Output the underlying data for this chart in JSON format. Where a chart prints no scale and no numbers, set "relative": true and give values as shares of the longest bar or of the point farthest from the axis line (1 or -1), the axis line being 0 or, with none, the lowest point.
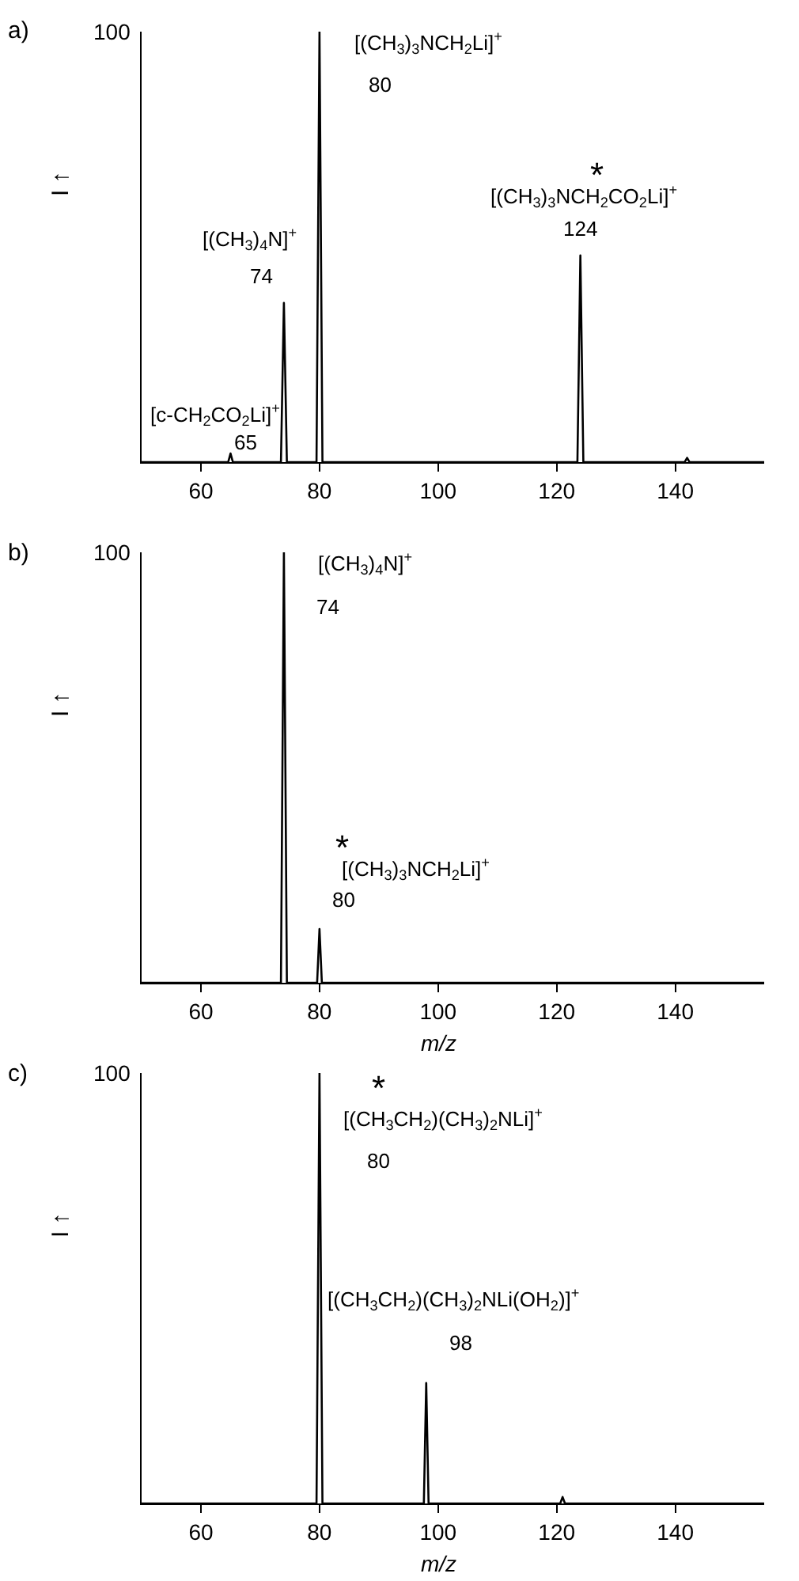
{
  "chart_data": [
    {
      "type": "line",
      "title": "a)",
      "ylabel": "I ↑",
      "relative": true,
      "xlim": [
        50,
        155
      ],
      "xticks": [
        60,
        80,
        100,
        120,
        140
      ],
      "marker": "none",
      "line_style": "solid",
      "series": [
        {
          "color": "#000000",
          "x": [
            50,
            64.6,
            65,
            65.4,
            73.5,
            74,
            74.5,
            79.5,
            80,
            80.5,
            123.5,
            124,
            124.5,
            141.6,
            142,
            142.4,
            155
          ],
          "values": [
            0,
            0,
            0.02,
            0,
            0,
            0.37,
            0,
            0,
            1,
            0,
            0,
            0.48,
            0,
            0,
            0.01,
            0,
            0
          ]
        }
      ],
      "annotations": [
        "100",
        "[c-CH$_{2}$CO$_{2}$Li]$^{+}$",
        {
          "text": "65",
          "x": 65,
          "y": 0.02
        },
        "[(CH$_{3}$)$_{4}$N]$^{+}$",
        {
          "text": "74",
          "x": 74,
          "y": 0.37
        },
        "[(CH$_{3}$)$_{3}$NCH$_{2}$Li]$^{+}$",
        "80",
        "*",
        "[(CH$_{3}$)$_{3}$NCH$_{2}$CO$_{2}$Li]$^{+}$",
        {
          "text": "124",
          "x": 124,
          "y": 0.48
        }
      ]
    },
    {
      "type": "line",
      "title": "b)",
      "xlabel": "m/z",
      "ylabel": "I ↑",
      "relative": true,
      "xlim": [
        50,
        155
      ],
      "xticks": [
        60,
        80,
        100,
        120,
        140
      ],
      "marker": "none",
      "line_style": "solid",
      "series": [
        {
          "color": "#000000",
          "x": [
            50,
            73.5,
            74,
            74.5,
            79.6,
            80,
            80.4,
            155
          ],
          "values": [
            0,
            0,
            1,
            0,
            0,
            0.125,
            0,
            0
          ]
        }
      ],
      "annotations": [
        "100",
        "[(CH$_{3}$)$_{4}$N]$^{+}$",
        {
          "text": "74",
          "x": 74,
          "y": 1
        },
        "*",
        "[(CH$_{3}$)$_{3}$NCH$_{2}$Li]$^{+}$",
        {
          "text": "80",
          "x": 80,
          "y": 0.125
        }
      ]
    },
    {
      "type": "line",
      "title": "c)",
      "xlabel": "m/z",
      "ylabel": "I ↑",
      "relative": true,
      "xlim": [
        50,
        155
      ],
      "xticks": [
        60,
        80,
        100,
        120,
        140
      ],
      "marker": "none",
      "line_style": "solid",
      "series": [
        {
          "color": "#000000",
          "x": [
            50,
            79.5,
            80,
            80.5,
            97.6,
            98,
            98.4,
            120.6,
            121,
            121.4,
            155
          ],
          "values": [
            0,
            0,
            1,
            0,
            0,
            0.28,
            0,
            0,
            0.015,
            0,
            0
          ]
        }
      ],
      "annotations": [
        "100",
        "*",
        "[(CH$_{3}$CH$_{2}$)(CH$_{3}$)$_{2}$NLi]$^{+}$",
        "80",
        "[(CH$_{3}$CH$_{2}$)(CH$_{3}$)$_{2}$NLi(OH$_{2}$)]$^{+}$",
        {
          "text": "98",
          "x": 98,
          "y": 0.28
        }
      ]
    }
  ]
}
